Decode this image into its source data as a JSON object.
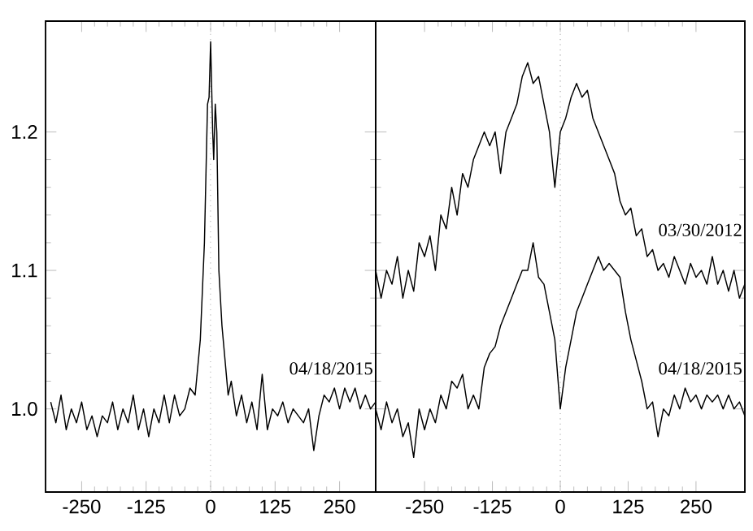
{
  "chart_data": [
    {
      "type": "line",
      "xlim": [
        -320,
        320
      ],
      "ylim": [
        0.94,
        1.28
      ],
      "xticks": [
        -250,
        -125,
        0,
        125,
        250
      ],
      "yticks": [
        {
          "value": 1,
          "label": "1.0"
        },
        {
          "value": 1.1,
          "label": "1.1"
        },
        {
          "value": 1.2,
          "label": "1.2"
        }
      ],
      "ref_lines": [
        {
          "axis": "x",
          "value": 0,
          "line_style": "dotted",
          "color": "#999999"
        }
      ],
      "series": [
        {
          "name": "04/18/2015",
          "color": "#000000",
          "x": [
            -310,
            -300,
            -290,
            -280,
            -270,
            -260,
            -250,
            -240,
            -230,
            -220,
            -210,
            -200,
            -190,
            -180,
            -170,
            -160,
            -150,
            -140,
            -130,
            -120,
            -110,
            -100,
            -90,
            -80,
            -70,
            -60,
            -50,
            -40,
            -30,
            -20,
            -12,
            -6,
            -3,
            0,
            4,
            6,
            9,
            12,
            16,
            22,
            28,
            34,
            40,
            50,
            60,
            70,
            80,
            90,
            100,
            110,
            120,
            130,
            140,
            150,
            160,
            170,
            180,
            190,
            200,
            210,
            220,
            230,
            240,
            250,
            260,
            270,
            280,
            290,
            300,
            310,
            320
          ],
          "values": [
            1.005,
            0.99,
            1.01,
            0.985,
            1.0,
            0.99,
            1.005,
            0.985,
            0.995,
            0.98,
            0.995,
            0.99,
            1.005,
            0.985,
            1.0,
            0.99,
            1.01,
            0.985,
            1.0,
            0.98,
            1.0,
            0.99,
            1.01,
            0.99,
            1.01,
            0.995,
            1.0,
            1.015,
            1.01,
            1.05,
            1.12,
            1.22,
            1.225,
            1.265,
            1.2,
            1.18,
            1.22,
            1.2,
            1.1,
            1.06,
            1.035,
            1.01,
            1.02,
            0.995,
            1.01,
            0.99,
            1.005,
            0.985,
            1.025,
            0.985,
            1.0,
            0.995,
            1.005,
            0.99,
            1.0,
            0.995,
            0.99,
            1.0,
            0.97,
            0.995,
            1.01,
            1.005,
            1.015,
            1.0,
            1.015,
            1.005,
            1.015,
            1.0,
            1.01,
            1.0,
            1.005
          ]
        }
      ]
    },
    {
      "type": "line",
      "xlim": [
        -340,
        340
      ],
      "ylim": [
        0.94,
        1.28
      ],
      "xticks": [
        -250,
        -125,
        0,
        125,
        250
      ],
      "yticks": [
        {
          "value": 1,
          "label": null
        },
        {
          "value": 1.1,
          "label": null
        },
        {
          "value": 1.2,
          "label": null
        }
      ],
      "tick_labels": "x",
      "ref_lines": [
        {
          "axis": "x",
          "value": 0,
          "line_style": "dotted",
          "color": "#999999"
        }
      ],
      "series": [
        {
          "name": "03/30/2012",
          "color": "#000000",
          "x": [
            -340,
            -330,
            -320,
            -310,
            -300,
            -290,
            -280,
            -270,
            -260,
            -250,
            -240,
            -230,
            -220,
            -210,
            -200,
            -190,
            -180,
            -170,
            -160,
            -150,
            -140,
            -130,
            -120,
            -110,
            -100,
            -90,
            -80,
            -70,
            -60,
            -50,
            -40,
            -30,
            -20,
            -10,
            0,
            10,
            20,
            30,
            40,
            50,
            60,
            70,
            80,
            90,
            100,
            110,
            120,
            130,
            140,
            150,
            160,
            170,
            180,
            190,
            200,
            210,
            220,
            230,
            240,
            250,
            260,
            270,
            280,
            290,
            300,
            310,
            320,
            330,
            340
          ],
          "values": [
            1.1,
            1.08,
            1.1,
            1.09,
            1.11,
            1.08,
            1.1,
            1.085,
            1.12,
            1.11,
            1.125,
            1.1,
            1.14,
            1.13,
            1.16,
            1.14,
            1.17,
            1.16,
            1.18,
            1.19,
            1.2,
            1.19,
            1.2,
            1.17,
            1.2,
            1.21,
            1.22,
            1.24,
            1.25,
            1.235,
            1.24,
            1.22,
            1.2,
            1.16,
            1.2,
            1.21,
            1.225,
            1.235,
            1.225,
            1.23,
            1.21,
            1.2,
            1.19,
            1.18,
            1.17,
            1.15,
            1.14,
            1.145,
            1.125,
            1.13,
            1.11,
            1.115,
            1.1,
            1.105,
            1.095,
            1.11,
            1.1,
            1.09,
            1.105,
            1.095,
            1.1,
            1.09,
            1.11,
            1.09,
            1.1,
            1.085,
            1.1,
            1.08,
            1.09
          ]
        },
        {
          "name": "04/18/2015",
          "color": "#000000",
          "x": [
            -340,
            -330,
            -320,
            -310,
            -300,
            -290,
            -280,
            -270,
            -260,
            -250,
            -240,
            -230,
            -220,
            -210,
            -200,
            -190,
            -180,
            -170,
            -160,
            -150,
            -140,
            -130,
            -120,
            -110,
            -100,
            -90,
            -80,
            -70,
            -60,
            -50,
            -40,
            -30,
            -20,
            -10,
            0,
            10,
            20,
            30,
            40,
            50,
            60,
            70,
            80,
            90,
            100,
            110,
            120,
            130,
            140,
            150,
            160,
            170,
            180,
            190,
            200,
            210,
            220,
            230,
            240,
            250,
            260,
            270,
            280,
            290,
            300,
            310,
            320,
            330,
            340
          ],
          "values": [
            1.0,
            0.985,
            1.005,
            0.99,
            1.0,
            0.98,
            0.99,
            0.965,
            1.0,
            0.985,
            1.0,
            0.99,
            1.01,
            1.0,
            1.02,
            1.015,
            1.025,
            1.0,
            1.01,
            1.0,
            1.03,
            1.04,
            1.045,
            1.06,
            1.07,
            1.08,
            1.09,
            1.1,
            1.1,
            1.12,
            1.095,
            1.09,
            1.07,
            1.05,
            1.0,
            1.03,
            1.05,
            1.07,
            1.08,
            1.09,
            1.1,
            1.11,
            1.1,
            1.105,
            1.1,
            1.095,
            1.07,
            1.05,
            1.035,
            1.02,
            1.0,
            1.005,
            0.98,
            1.0,
            0.995,
            1.01,
            1.0,
            1.015,
            1.005,
            1.01,
            1.0,
            1.01,
            1.005,
            1.01,
            1.0,
            1.01,
            1.0,
            1.005,
            0.995
          ]
        }
      ]
    }
  ]
}
